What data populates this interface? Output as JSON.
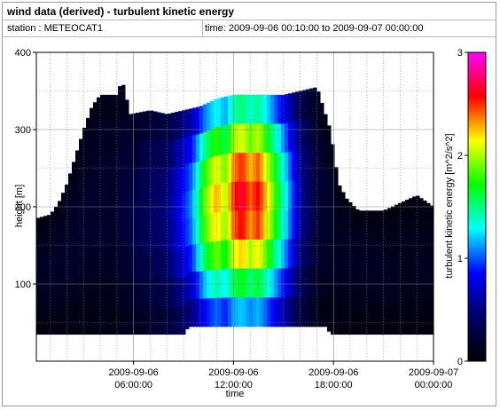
{
  "window": {
    "title": "wind data (derived) - turbulent kinetic energy",
    "station": "station : METEOCAT1",
    "time_range": "time: 2009-09-06 00:10:00 to 2009-09-07 00:00:00"
  },
  "chart_data": {
    "type": "heatmap",
    "title": "",
    "xlabel": "time",
    "ylabel": "height [m]",
    "x_ticks": [
      {
        "t": 6,
        "line1": "2009-09-06",
        "line2": "06:00:00"
      },
      {
        "t": 12,
        "line1": "2009-09-06",
        "line2": "12:00:00"
      },
      {
        "t": 18,
        "line1": "2009-09-06",
        "line2": "18:00:00"
      },
      {
        "t": 24,
        "line1": "2009-09-07",
        "line2": "00:00:00"
      }
    ],
    "xlim_hours": [
      0.1667,
      24
    ],
    "ylim": [
      0,
      400
    ],
    "y_ticks": [
      100,
      200,
      300,
      400
    ],
    "grid": true,
    "colorbar": {
      "label": "turbulent kinetic energy [m^2/s^2]",
      "range": [
        0,
        3
      ],
      "ticks": [
        "0",
        "1",
        "2",
        "3"
      ],
      "colors": [
        "#000000",
        "#000066",
        "#0000ff",
        "#00ffff",
        "#00ff00",
        "#ffff00",
        "#ff0000",
        "#ff00ff"
      ]
    },
    "data_top_height_by_hour": [
      [
        0.17,
        185
      ],
      [
        1.0,
        190
      ],
      [
        1.5,
        205
      ],
      [
        2.0,
        230
      ],
      [
        2.5,
        265
      ],
      [
        3.0,
        300
      ],
      [
        3.5,
        330
      ],
      [
        4.0,
        345
      ],
      [
        5.0,
        345
      ],
      [
        5.3,
        365
      ],
      [
        5.8,
        320
      ],
      [
        7.0,
        325
      ],
      [
        8.0,
        320
      ],
      [
        9.0,
        325
      ],
      [
        10.0,
        330
      ],
      [
        11.0,
        340
      ],
      [
        12.0,
        345
      ],
      [
        13.0,
        345
      ],
      [
        14.0,
        345
      ],
      [
        15.0,
        345
      ],
      [
        16.0,
        350
      ],
      [
        17.0,
        355
      ],
      [
        17.8,
        300
      ],
      [
        18.3,
        230
      ],
      [
        18.8,
        210
      ],
      [
        19.5,
        195
      ],
      [
        21.0,
        195
      ],
      [
        22.0,
        205
      ],
      [
        23.0,
        215
      ],
      [
        24.0,
        200
      ]
    ],
    "data_bottom_height_by_hour": [
      [
        0.17,
        35
      ],
      [
        9.0,
        35
      ],
      [
        9.3,
        45
      ],
      [
        17.6,
        45
      ],
      [
        17.8,
        35
      ],
      [
        19.2,
        35
      ],
      [
        19.5,
        35
      ],
      [
        24.0,
        35
      ]
    ],
    "tke_profile_by_hour": [
      [
        0.17,
        0.15
      ],
      [
        5.0,
        0.2
      ],
      [
        8.0,
        0.5
      ],
      [
        9.5,
        1.1
      ],
      [
        10.3,
        1.9
      ],
      [
        11.0,
        2.3
      ],
      [
        11.5,
        2.0
      ],
      [
        12.0,
        2.5
      ],
      [
        12.5,
        2.7
      ],
      [
        13.0,
        2.4
      ],
      [
        13.5,
        2.6
      ],
      [
        14.0,
        2.2
      ],
      [
        15.0,
        1.4
      ],
      [
        16.0,
        0.6
      ],
      [
        17.0,
        0.25
      ],
      [
        18.0,
        0.15
      ],
      [
        24.0,
        0.12
      ]
    ]
  }
}
